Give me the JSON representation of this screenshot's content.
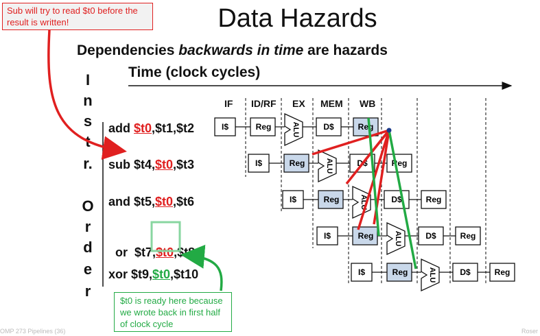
{
  "title": "Data Hazards",
  "subtitle_pre": "Dependencies ",
  "subtitle_em": "backwards in time",
  "subtitle_post": " are hazards",
  "time_label": "Time (clock cycles)",
  "axis_letters": [
    "I",
    "n",
    "s",
    "t",
    "r.",
    "O",
    "r",
    "d",
    "e",
    "r"
  ],
  "stages": [
    "IF",
    "ID/RF",
    "EX",
    "MEM",
    "WB"
  ],
  "instructions": [
    {
      "op": "add ",
      "dst": "$t0",
      "rest": ",$t1,$t2"
    },
    {
      "op": "sub $t4,",
      "src": "$t0",
      "rest": ",$t3"
    },
    {
      "op": "and $t5,",
      "src": "$t0",
      "rest": ",$t6"
    },
    {
      "op": "or  $t7,",
      "src": "$t0",
      "rest": ",$t8"
    },
    {
      "op": "xor $t9,",
      "src": "$t0",
      "rest": ",$t10"
    }
  ],
  "callout_red": "Sub will try to read $t0 before the result is written!",
  "callout_green": "$t0 is ready here because we wrote back in first half of clock cycle",
  "unit_labels": {
    "imem": "I$",
    "reg": "Reg",
    "alu": "ALU",
    "dmem": "D$"
  },
  "footer_left": "OMP 273 Pipelines (36)",
  "footer_right": "Roser",
  "colors": {
    "hazard": "#e02020",
    "ok": "#22aa44",
    "accent_fill": "#c9d8ea",
    "text": "#111111"
  }
}
